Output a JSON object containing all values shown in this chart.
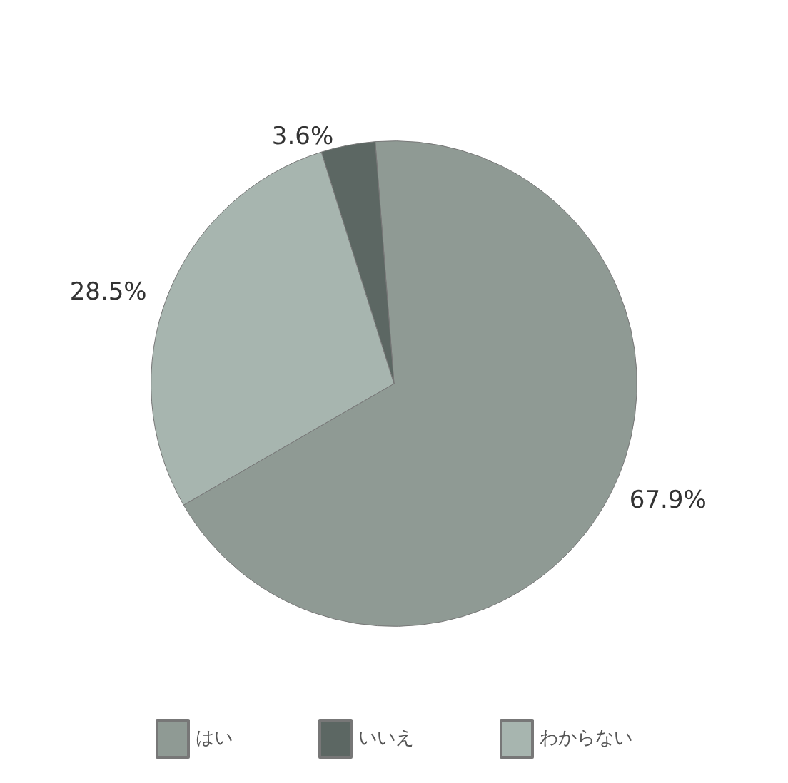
{
  "chart_data": {
    "type": "pie",
    "categories": [
      "はい",
      "いいえ",
      "わからない"
    ],
    "values": [
      67.9,
      3.6,
      28.5
    ],
    "value_labels": [
      "67.9%",
      "3.6%",
      "28.5%"
    ],
    "colors": [
      "#8f9a94",
      "#5c6763",
      "#a7b5af"
    ],
    "legend": "bottom"
  }
}
